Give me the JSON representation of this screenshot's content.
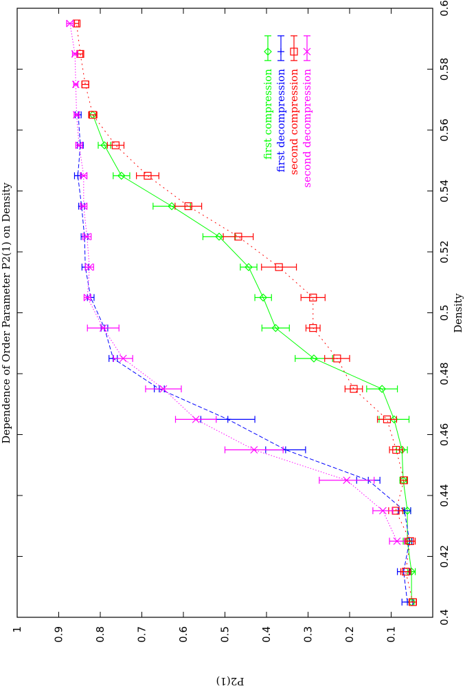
{
  "chart_data": {
    "type": "line",
    "orientation": "rotated 90 degrees counter-clockwise",
    "title": "Dependence of Order Parameter P2(1) on Density",
    "xlabel": "Density",
    "ylabel": "P2(1)",
    "xlim": [
      0.4,
      0.6
    ],
    "ylim": [
      0,
      1
    ],
    "xticks": [
      "0.4",
      "0.42",
      "0.44",
      "0.46",
      "0.48",
      "0.5",
      "0.52",
      "0.54",
      "0.56",
      "0.58",
      "0.6"
    ],
    "yticks": [
      "1",
      "0.9",
      "0.8",
      "0.7",
      "0.6",
      "0.5",
      "0.4",
      "0.3",
      "0.2",
      "0.1"
    ],
    "grid": false,
    "legend_placement": "top-right",
    "series": [
      {
        "name": "first compression",
        "color": "#00ff00",
        "marker": "diamond",
        "line": "solid",
        "x": [
          0.405,
          0.415,
          0.425,
          0.435,
          0.445,
          0.455,
          0.465,
          0.475,
          0.485,
          0.495,
          0.505,
          0.515,
          0.525,
          0.535,
          0.545,
          0.555,
          0.565
        ],
        "y": [
          0.051,
          0.051,
          0.061,
          0.061,
          0.071,
          0.074,
          0.093,
          0.122,
          0.286,
          0.378,
          0.408,
          0.443,
          0.514,
          0.628,
          0.749,
          0.79,
          0.818
        ],
        "err": [
          0.006,
          0.009,
          0.01,
          0.008,
          0.008,
          0.013,
          0.036,
          0.037,
          0.045,
          0.033,
          0.02,
          0.02,
          0.039,
          0.045,
          0.02,
          0.015,
          0.008
        ]
      },
      {
        "name": "first decompression",
        "color": "#0000ff",
        "marker": "plus",
        "line": "dashed",
        "x": [
          0.405,
          0.415,
          0.425,
          0.435,
          0.445,
          0.455,
          0.465,
          0.475,
          0.485,
          0.495,
          0.505,
          0.515,
          0.525,
          0.535,
          0.545,
          0.555,
          0.565
        ],
        "y": [
          0.061,
          0.07,
          0.056,
          0.068,
          0.155,
          0.354,
          0.493,
          0.658,
          0.769,
          0.79,
          0.823,
          0.836,
          0.838,
          0.845,
          0.854,
          0.848,
          0.853
        ],
        "err": [
          0.013,
          0.015,
          0.006,
          0.015,
          0.028,
          0.048,
          0.065,
          0.012,
          0.01,
          0.008,
          0.008,
          0.008,
          0.008,
          0.007,
          0.008,
          0.007,
          0.007
        ]
      },
      {
        "name": "second compression",
        "color": "#ff0000",
        "marker": "square",
        "line": "dotted",
        "x": [
          0.405,
          0.415,
          0.425,
          0.435,
          0.445,
          0.455,
          0.465,
          0.475,
          0.485,
          0.495,
          0.505,
          0.515,
          0.525,
          0.535,
          0.545,
          0.555,
          0.565,
          0.575,
          0.585,
          0.595
        ],
        "y": [
          0.048,
          0.065,
          0.054,
          0.089,
          0.069,
          0.088,
          0.11,
          0.19,
          0.23,
          0.288,
          0.288,
          0.37,
          0.468,
          0.588,
          0.686,
          0.763,
          0.818,
          0.836,
          0.848,
          0.857
        ],
        "err": [
          0.009,
          0.012,
          0.012,
          0.017,
          0.008,
          0.016,
          0.023,
          0.021,
          0.03,
          0.017,
          0.029,
          0.042,
          0.036,
          0.032,
          0.027,
          0.02,
          0.01,
          0.008,
          0.006,
          0.005
        ]
      },
      {
        "name": "second decompression",
        "color": "#ff00ff",
        "marker": "x",
        "line": "fine-dotted",
        "x": [
          0.425,
          0.435,
          0.445,
          0.455,
          0.465,
          0.475,
          0.485,
          0.495,
          0.505,
          0.515,
          0.525,
          0.535,
          0.545,
          0.555,
          0.565,
          0.575,
          0.585,
          0.595
        ],
        "y": [
          0.086,
          0.12,
          0.207,
          0.43,
          0.57,
          0.648,
          0.745,
          0.793,
          0.831,
          0.826,
          0.832,
          0.84,
          0.84,
          0.851,
          0.857,
          0.859,
          0.861,
          0.873
        ],
        "err": [
          0.018,
          0.024,
          0.066,
          0.07,
          0.049,
          0.043,
          0.023,
          0.038,
          0.008,
          0.01,
          0.01,
          0.008,
          0.008,
          0.008,
          0.006,
          0.005,
          0.006,
          0.008
        ]
      }
    ]
  }
}
